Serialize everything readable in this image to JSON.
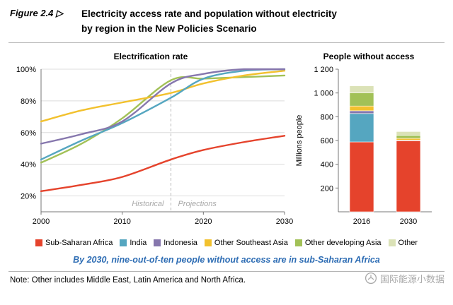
{
  "figure": {
    "label": "Figure 2.4 ▷",
    "title_line1": "Electricity access rate and population without electricity",
    "title_line2": "by region in the New Policies Scenario"
  },
  "callout": "By 2030, nine-out-of-ten people without access are in sub-Saharan Africa",
  "note": "Note: Other includes Middle East, Latin America and North Africa.",
  "watermark": "国际能源小数据",
  "colors": {
    "sub_saharan_africa": "#e5432c",
    "india": "#55a6c0",
    "indonesia": "#8677ad",
    "other_southeast_asia": "#f2c12e",
    "other_developing_asia": "#a2c157",
    "other": "#dbe2b7",
    "callout_blue": "#2e6db4"
  },
  "legend": [
    {
      "label": "Sub-Saharan Africa",
      "color": "#e5432c"
    },
    {
      "label": "India",
      "color": "#55a6c0"
    },
    {
      "label": "Indonesia",
      "color": "#8677ad"
    },
    {
      "label": "Other Southeast Asia",
      "color": "#f2c12e"
    },
    {
      "label": "Other developing Asia",
      "color": "#a2c157"
    },
    {
      "label": "Other",
      "color": "#dbe2b7"
    }
  ],
  "chart_data": [
    {
      "type": "line",
      "title": "Electrification rate",
      "x": [
        2000,
        2005,
        2010,
        2016,
        2020,
        2025,
        2030
      ],
      "series": [
        {
          "name": "Sub-Saharan Africa",
          "color": "#e5432c",
          "values": [
            23,
            27,
            32,
            43,
            49,
            54,
            58
          ]
        },
        {
          "name": "India",
          "color": "#55a6c0",
          "values": [
            43,
            55,
            66,
            82,
            94,
            99,
            100
          ]
        },
        {
          "name": "Indonesia",
          "color": "#8677ad",
          "values": [
            53,
            59,
            67,
            91,
            97,
            100,
            100
          ]
        },
        {
          "name": "Other Southeast Asia",
          "color": "#f2c12e",
          "values": [
            67,
            74,
            79,
            85,
            91,
            96,
            99
          ]
        },
        {
          "name": "Other developing Asia",
          "color": "#a2c157",
          "values": [
            41,
            53,
            69,
            93,
            94,
            95,
            96
          ]
        }
      ],
      "xlim": [
        2000,
        2030
      ],
      "ylim": [
        10,
        100
      ],
      "xticks": [
        2000,
        2010,
        2020,
        2030
      ],
      "yticks": [
        20,
        40,
        60,
        80,
        100
      ],
      "ytick_suffix": "%",
      "divider_x": 2016,
      "annotations": {
        "historical": "Historical",
        "projections": "Projections"
      },
      "grid": true,
      "legend_position": "bottom"
    },
    {
      "type": "bar",
      "title": "People without access",
      "ylabel": "Millions people",
      "categories": [
        "2016",
        "2030"
      ],
      "stacked": true,
      "series": [
        {
          "name": "Sub-Saharan Africa",
          "color": "#e5432c",
          "values": [
            588,
            600
          ]
        },
        {
          "name": "India",
          "color": "#55a6c0",
          "values": [
            239,
            2
          ]
        },
        {
          "name": "Indonesia",
          "color": "#8677ad",
          "values": [
            23,
            1
          ]
        },
        {
          "name": "Other Southeast Asia",
          "color": "#f2c12e",
          "values": [
            40,
            15
          ]
        },
        {
          "name": "Other developing Asia",
          "color": "#a2c157",
          "values": [
            110,
            25
          ]
        },
        {
          "name": "Other",
          "color": "#dbe2b7",
          "values": [
            60,
            32
          ]
        }
      ],
      "ylim": [
        0,
        1200
      ],
      "yticks": [
        200,
        400,
        600,
        800,
        1000,
        1200
      ],
      "ytick_labels": [
        "200",
        "400",
        "600",
        "800",
        "1 000",
        "1 200"
      ]
    }
  ]
}
